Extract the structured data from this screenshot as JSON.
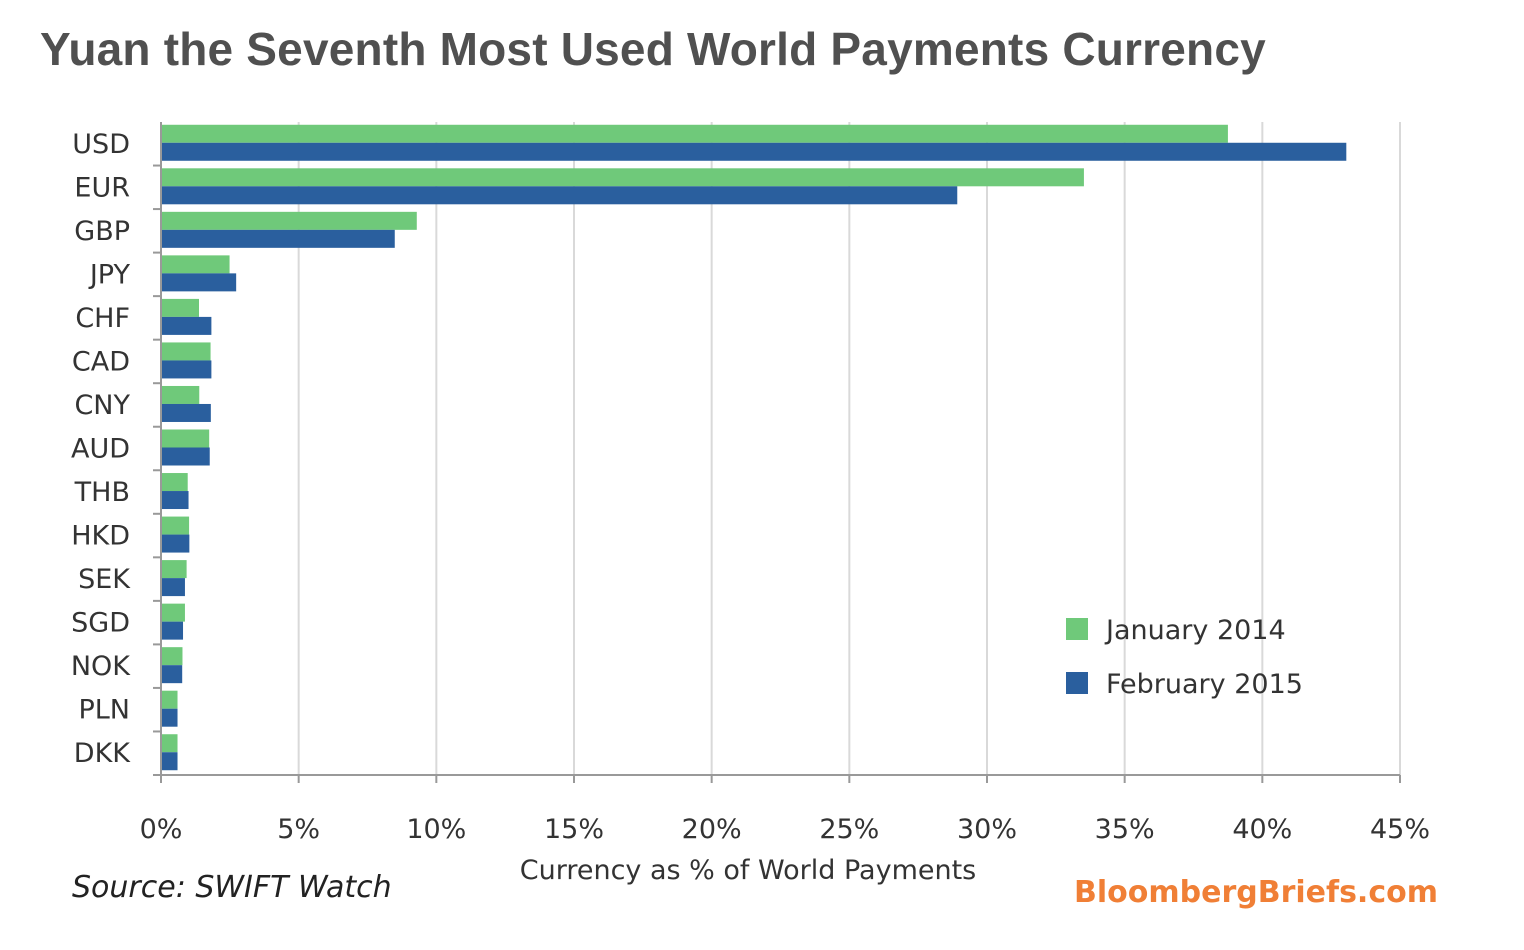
{
  "title": "Yuan the Seventh Most Used World Payments Currency",
  "source": "Source: SWIFT Watch",
  "brand": "BloombergBriefs.com",
  "colors": {
    "jan2014": "#6fc97a",
    "feb2015": "#2a5f9e",
    "grid": "#d9d9d9",
    "axis": "#999999",
    "brand": "#f07f36"
  },
  "chart_data": {
    "type": "bar",
    "orientation": "horizontal",
    "categories": [
      "USD",
      "EUR",
      "GBP",
      "JPY",
      "CHF",
      "CAD",
      "CNY",
      "AUD",
      "THB",
      "HKD",
      "SEK",
      "SGD",
      "NOK",
      "PLN",
      "DKK"
    ],
    "series": [
      {
        "name": "January 2014",
        "color": "#6fc97a",
        "values": [
          38.75,
          33.52,
          9.29,
          2.49,
          1.38,
          1.8,
          1.39,
          1.75,
          0.97,
          1.02,
          0.93,
          0.87,
          0.78,
          0.6,
          0.6
        ]
      },
      {
        "name": "February 2015",
        "color": "#2a5f9e",
        "values": [
          43.05,
          28.92,
          8.49,
          2.73,
          1.83,
          1.83,
          1.81,
          1.77,
          1.0,
          1.03,
          0.87,
          0.8,
          0.77,
          0.6,
          0.6
        ]
      }
    ],
    "xlabel": "Currency as % of World Payments",
    "ylabel": "",
    "xlim": [
      0,
      45
    ],
    "xticks": [
      "0%",
      "5%",
      "10%",
      "15%",
      "20%",
      "25%",
      "30%",
      "35%",
      "40%",
      "45%"
    ],
    "grid": "vertical",
    "legend_position": "bottom-right"
  }
}
